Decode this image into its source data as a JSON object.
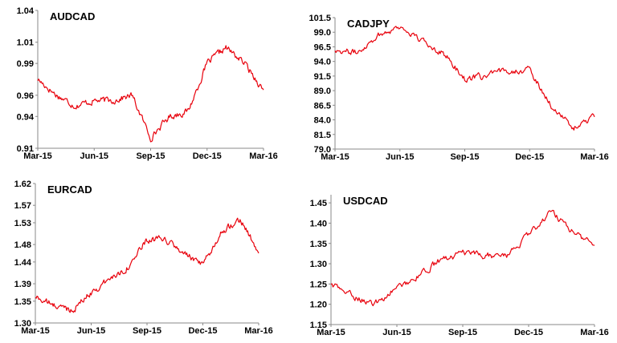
{
  "colors": {
    "line": "#e8000b",
    "axis": "#8a8a8a",
    "text": "#000000"
  },
  "x_tick_labels": [
    "Mar-15",
    "Jun-15",
    "Sep-15",
    "Dec-15",
    "Mar-16"
  ],
  "chart_data": [
    {
      "id": "audcad",
      "type": "line",
      "title": "AUDCAD",
      "ylim": [
        0.91,
        1.04
      ],
      "ticks": [
        "0.91",
        "0.94",
        "0.96",
        "0.99",
        "1.01",
        "1.04"
      ],
      "x": [
        "Mar-15",
        "Apr-15",
        "May-15",
        "Jun-15",
        "Jul-15",
        "Aug-15",
        "Sep-15",
        "Oct-15",
        "Nov-15",
        "Dec-15",
        "Jan-16",
        "Feb-16",
        "Mar-16"
      ],
      "values": [
        0.975,
        0.96,
        0.95,
        0.955,
        0.955,
        0.96,
        0.92,
        0.94,
        0.945,
        0.99,
        1.005,
        0.99,
        0.965
      ]
    },
    {
      "id": "cadjpy",
      "type": "line",
      "title": "CADJPY",
      "ylim": [
        79.0,
        101.5
      ],
      "ticks": [
        "79.0",
        "81.5",
        "84.0",
        "86.5",
        "89.0",
        "91.5",
        "94.0",
        "96.5",
        "99.0",
        "101.5"
      ],
      "x": [
        "Mar-15",
        "Apr-15",
        "May-15",
        "Jun-15",
        "Jul-15",
        "Aug-15",
        "Sep-15",
        "Oct-15",
        "Nov-15",
        "Dec-15",
        "Jan-16",
        "Feb-16",
        "Mar-16"
      ],
      "values": [
        96.0,
        95.5,
        98.5,
        100.0,
        97.5,
        95.5,
        91.0,
        91.5,
        92.5,
        92.5,
        86.5,
        82.5,
        84.5
      ]
    },
    {
      "id": "eurcad",
      "type": "line",
      "title": "EURCAD",
      "ylim": [
        1.3,
        1.62
      ],
      "ticks": [
        "1.30",
        "1.35",
        "1.39",
        "1.44",
        "1.48",
        "1.53",
        "1.57",
        "1.62"
      ],
      "x": [
        "Mar-15",
        "Apr-15",
        "May-15",
        "Jun-15",
        "Jul-15",
        "Aug-15",
        "Sep-15",
        "Oct-15",
        "Nov-15",
        "Dec-15",
        "Jan-16",
        "Feb-16",
        "Mar-16"
      ],
      "values": [
        1.36,
        1.34,
        1.33,
        1.37,
        1.4,
        1.43,
        1.49,
        1.49,
        1.46,
        1.43,
        1.51,
        1.54,
        1.46
      ]
    },
    {
      "id": "usdcad",
      "type": "line",
      "title": "USDCAD",
      "ylim": [
        1.15,
        1.47
      ],
      "ticks": [
        "1.15",
        "1.20",
        "1.25",
        "1.30",
        "1.35",
        "1.40",
        "1.45"
      ],
      "x": [
        "Mar-15",
        "Apr-15",
        "May-15",
        "Jun-15",
        "Jul-15",
        "Aug-15",
        "Sep-15",
        "Oct-15",
        "Nov-15",
        "Dec-15",
        "Jan-16",
        "Feb-16",
        "Mar-16"
      ],
      "values": [
        1.25,
        1.22,
        1.2,
        1.24,
        1.27,
        1.31,
        1.325,
        1.32,
        1.32,
        1.37,
        1.43,
        1.38,
        1.345
      ]
    }
  ]
}
